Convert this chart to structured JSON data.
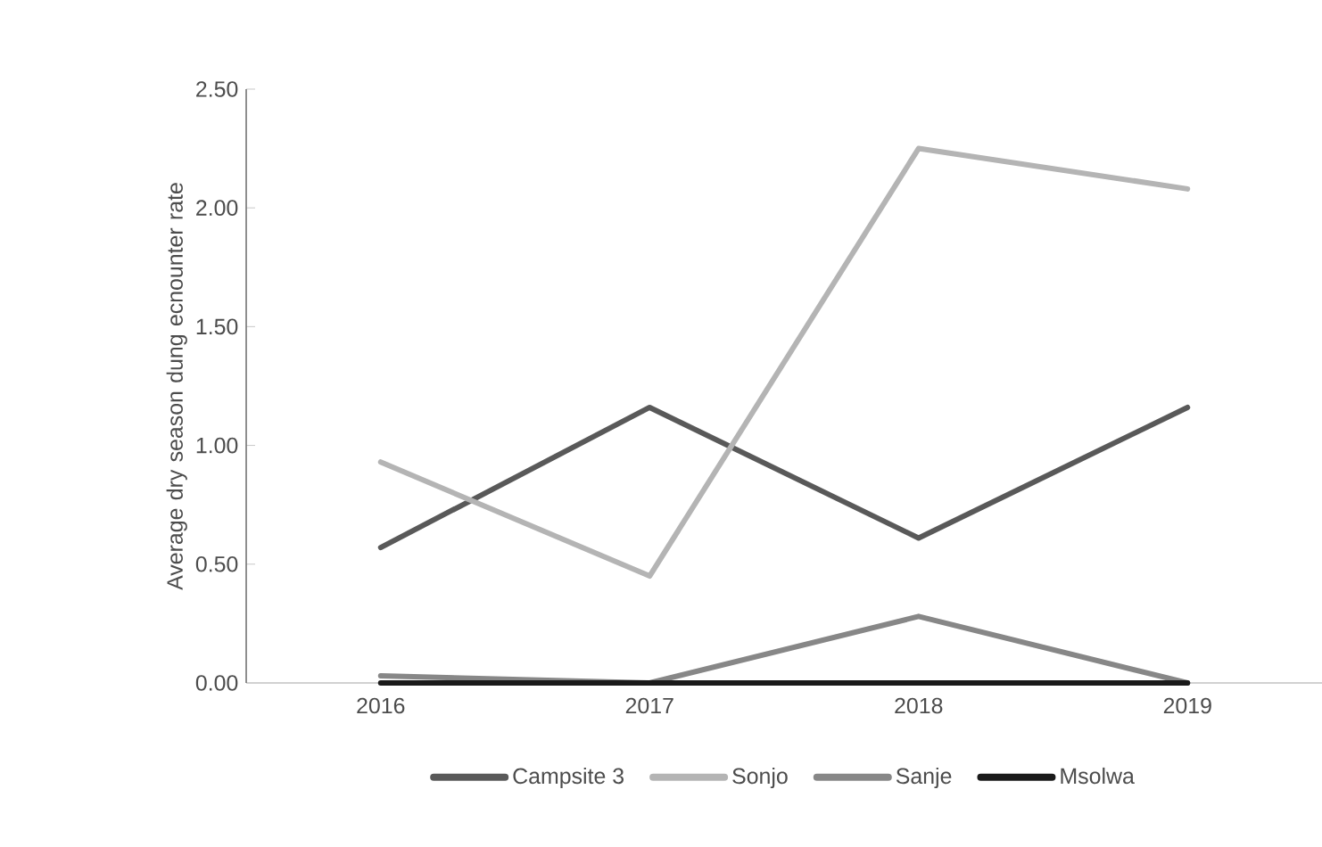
{
  "chart_data": {
    "type": "line",
    "ylabel": "Average dry season dung ecnounter rate",
    "categories": [
      "2016",
      "2017",
      "2018",
      "2019"
    ],
    "series": [
      {
        "name": "Campsite 3",
        "color": "#595959",
        "values": [
          0.57,
          1.16,
          0.61,
          1.16
        ]
      },
      {
        "name": "Sonjo",
        "color": "#b4b4b4",
        "values": [
          0.93,
          0.45,
          2.25,
          2.08
        ]
      },
      {
        "name": "Sanje",
        "color": "#878787",
        "values": [
          0.03,
          0,
          0.28,
          0
        ]
      },
      {
        "name": "Msolwa",
        "color": "#1a1a1a",
        "values": [
          0,
          0,
          0,
          0
        ]
      }
    ],
    "ylim": [
      0,
      2.5
    ],
    "yticks": [
      {
        "value": 0,
        "label": "0.00"
      },
      {
        "value": 0.5,
        "label": "0.50"
      },
      {
        "value": 1,
        "label": "1.00"
      },
      {
        "value": 1.5,
        "label": "1.50"
      },
      {
        "value": 2,
        "label": "2.00"
      },
      {
        "value": 2.5,
        "label": "2.50"
      }
    ],
    "legend": "bottom",
    "grid": false,
    "marker": "none",
    "line_style": "solid"
  }
}
